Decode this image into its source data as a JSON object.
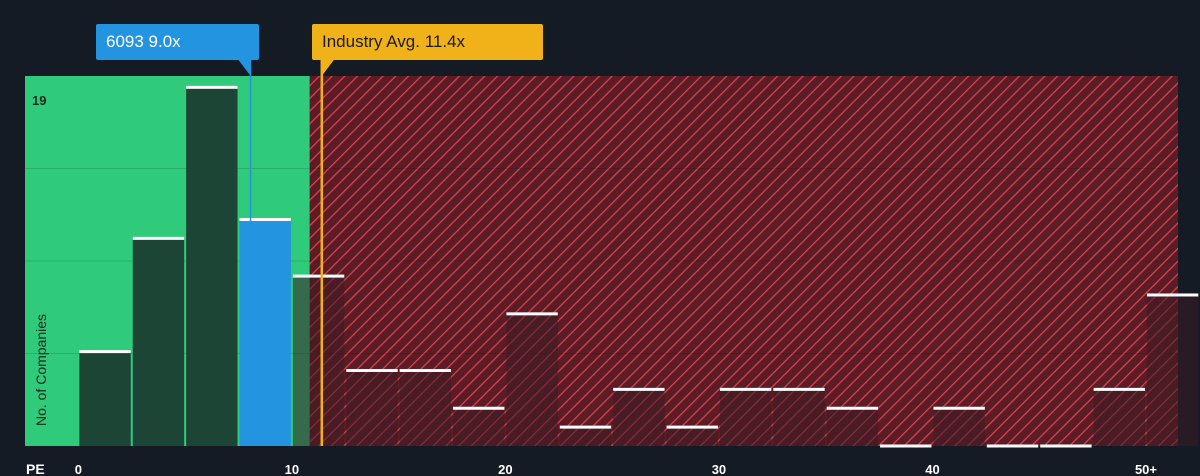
{
  "colors": {
    "background": "#151b24",
    "undervalued_zone": "#2fca7a",
    "overvalued_zone": "#5b1c25",
    "hatch_line": "#d9434f",
    "bar_fill": "#1c4536",
    "bar_fill_overvalued": "#3a1c24",
    "highlight_bar": "#2394e0",
    "industry_line": "#f0b119",
    "bar_cap": "#ffffff"
  },
  "callouts": {
    "company": "6093 9.0x",
    "industry": "Industry Avg. 11.4x"
  },
  "chart_data": {
    "type": "bar",
    "xlabel": "PE",
    "ylabel": "No. of Companies",
    "xlim": [
      -2.5,
      51.5
    ],
    "ylim": [
      0,
      19.6
    ],
    "x_ticks": [
      {
        "value": 0,
        "label": "0"
      },
      {
        "value": 10,
        "label": "10"
      },
      {
        "value": 20,
        "label": "20"
      },
      {
        "value": 30,
        "label": "30"
      },
      {
        "value": 40,
        "label": "40"
      },
      {
        "value": 50,
        "label": "50+"
      }
    ],
    "y_max_label": "19",
    "bin_width": 2.5,
    "bins": [
      {
        "start": 0,
        "count": 5
      },
      {
        "start": 2.5,
        "count": 11
      },
      {
        "start": 5,
        "count": 19
      },
      {
        "start": 7.5,
        "count": 12,
        "highlight": true
      },
      {
        "start": 10,
        "count": 9
      },
      {
        "start": 12.5,
        "count": 4
      },
      {
        "start": 15,
        "count": 4
      },
      {
        "start": 17.5,
        "count": 2
      },
      {
        "start": 20,
        "count": 7
      },
      {
        "start": 22.5,
        "count": 1
      },
      {
        "start": 25,
        "count": 3
      },
      {
        "start": 27.5,
        "count": 1
      },
      {
        "start": 30,
        "count": 3
      },
      {
        "start": 32.5,
        "count": 3
      },
      {
        "start": 35,
        "count": 2
      },
      {
        "start": 37.5,
        "count": 0
      },
      {
        "start": 40,
        "count": 2
      },
      {
        "start": 42.5,
        "count": 0
      },
      {
        "start": 45,
        "count": 0
      },
      {
        "start": 47.5,
        "count": 3
      },
      {
        "start": 50,
        "count": 8
      }
    ],
    "company": {
      "ticker": "6093",
      "pe": 9.0
    },
    "industry_avg": 11.4
  }
}
